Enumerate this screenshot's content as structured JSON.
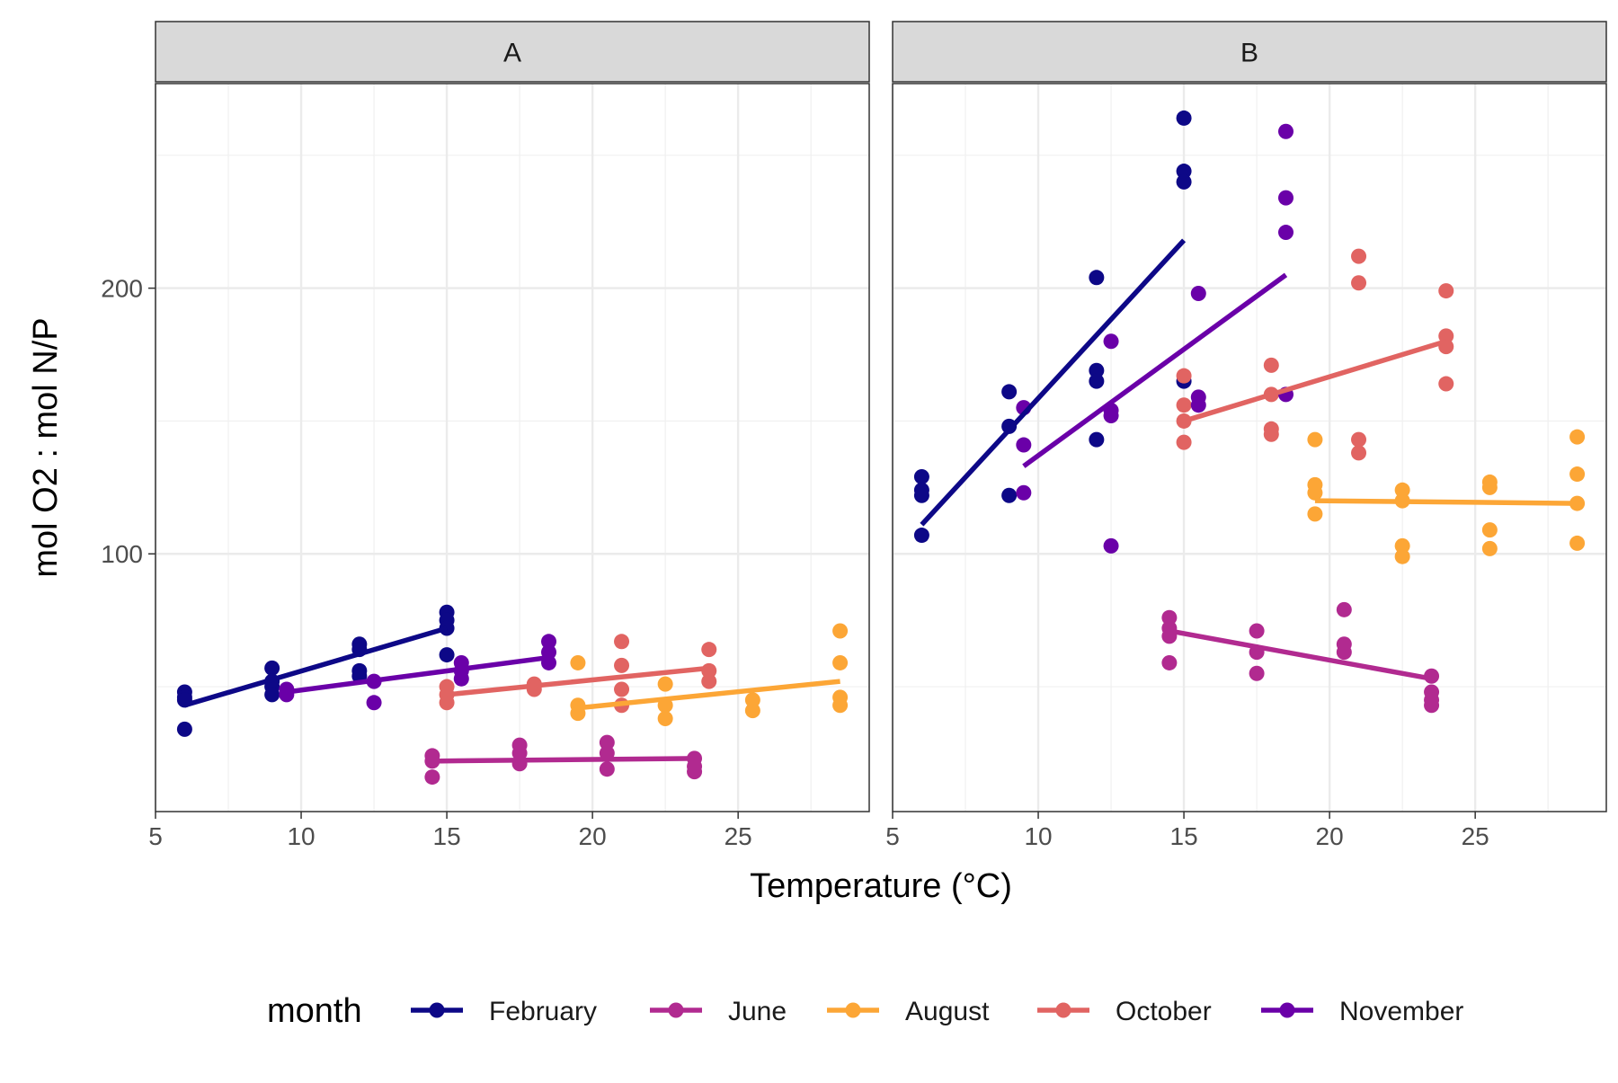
{
  "chart_data": {
    "type": "scatter",
    "xlabel": "Temperature (°C)",
    "ylabel": "mol O2 : mol N/P",
    "xlim": [
      5,
      29.5
    ],
    "ylim": [
      3,
      277
    ],
    "x_ticks": [
      5,
      10,
      15,
      20,
      25
    ],
    "y_ticks": [
      100,
      200
    ],
    "grid": true,
    "legend": {
      "title": "month",
      "position": "bottom",
      "items": [
        {
          "name": "February",
          "color": "#0d0887"
        },
        {
          "name": "June",
          "color": "#b12a90"
        },
        {
          "name": "August",
          "color": "#fca636"
        },
        {
          "name": "October",
          "color": "#e16462"
        },
        {
          "name": "November",
          "color": "#6a00a8"
        }
      ]
    },
    "panels": [
      {
        "label": "A",
        "series": [
          {
            "name": "February",
            "color": "#0d0887",
            "points": [
              [
                6,
                48
              ],
              [
                6,
                46
              ],
              [
                6,
                45
              ],
              [
                6,
                34
              ],
              [
                9,
                57
              ],
              [
                9,
                52
              ],
              [
                9,
                50
              ],
              [
                9,
                47
              ],
              [
                12,
                66
              ],
              [
                12,
                64
              ],
              [
                12,
                56
              ],
              [
                12,
                54
              ],
              [
                15,
                78
              ],
              [
                15,
                75
              ],
              [
                15,
                72
              ],
              [
                15,
                62
              ]
            ],
            "fit": [
              [
                6,
                43
              ],
              [
                15,
                72
              ]
            ]
          },
          {
            "name": "June",
            "color": "#b12a90",
            "points": [
              [
                14.5,
                24
              ],
              [
                14.5,
                22
              ],
              [
                14.5,
                16
              ],
              [
                17.5,
                28
              ],
              [
                17.5,
                25
              ],
              [
                17.5,
                21
              ],
              [
                20.5,
                29
              ],
              [
                20.5,
                25
              ],
              [
                20.5,
                19
              ],
              [
                23.5,
                23
              ],
              [
                23.5,
                20
              ],
              [
                23.5,
                18
              ]
            ],
            "fit": [
              [
                14.5,
                22
              ],
              [
                23.5,
                23
              ]
            ]
          },
          {
            "name": "August",
            "color": "#fca636",
            "points": [
              [
                19.5,
                59
              ],
              [
                19.5,
                43
              ],
              [
                19.5,
                40
              ],
              [
                22.5,
                51
              ],
              [
                22.5,
                43
              ],
              [
                22.5,
                38
              ],
              [
                25.5,
                45
              ],
              [
                25.5,
                41
              ],
              [
                28.5,
                71
              ],
              [
                28.5,
                59
              ],
              [
                28.5,
                46
              ],
              [
                28.5,
                43
              ]
            ],
            "fit": [
              [
                19.5,
                42
              ],
              [
                28.5,
                52
              ]
            ]
          },
          {
            "name": "October",
            "color": "#e16462",
            "points": [
              [
                15,
                50
              ],
              [
                15,
                47
              ],
              [
                15,
                44
              ],
              [
                18,
                51
              ],
              [
                18,
                49
              ],
              [
                21,
                67
              ],
              [
                21,
                58
              ],
              [
                21,
                49
              ],
              [
                21,
                43
              ],
              [
                24,
                64
              ],
              [
                24,
                56
              ],
              [
                24,
                52
              ]
            ],
            "fit": [
              [
                15,
                47
              ],
              [
                24,
                57
              ]
            ]
          },
          {
            "name": "November",
            "color": "#6a00a8",
            "points": [
              [
                9.5,
                49
              ],
              [
                9.5,
                47
              ],
              [
                12.5,
                52
              ],
              [
                12.5,
                44
              ],
              [
                15.5,
                59
              ],
              [
                15.5,
                56
              ],
              [
                15.5,
                53
              ],
              [
                18.5,
                67
              ],
              [
                18.5,
                63
              ],
              [
                18.5,
                59
              ]
            ],
            "fit": [
              [
                9.5,
                48
              ],
              [
                18.5,
                61
              ]
            ]
          }
        ]
      },
      {
        "label": "B",
        "series": [
          {
            "name": "February",
            "color": "#0d0887",
            "points": [
              [
                6,
                129
              ],
              [
                6,
                124
              ],
              [
                6,
                122
              ],
              [
                6,
                107
              ],
              [
                9,
                161
              ],
              [
                9,
                148
              ],
              [
                9,
                122
              ],
              [
                12,
                204
              ],
              [
                12,
                169
              ],
              [
                12,
                165
              ],
              [
                12,
                143
              ],
              [
                15,
                264
              ],
              [
                15,
                244
              ],
              [
                15,
                240
              ],
              [
                15,
                165
              ]
            ],
            "fit": [
              [
                6,
                111
              ],
              [
                15,
                218
              ]
            ]
          },
          {
            "name": "June",
            "color": "#b12a90",
            "points": [
              [
                14.5,
                76
              ],
              [
                14.5,
                72
              ],
              [
                14.5,
                69
              ],
              [
                14.5,
                59
              ],
              [
                17.5,
                71
              ],
              [
                17.5,
                63
              ],
              [
                17.5,
                55
              ],
              [
                20.5,
                79
              ],
              [
                20.5,
                66
              ],
              [
                20.5,
                63
              ],
              [
                23.5,
                54
              ],
              [
                23.5,
                48
              ],
              [
                23.5,
                45
              ],
              [
                23.5,
                43
              ]
            ],
            "fit": [
              [
                14.5,
                71
              ],
              [
                23.5,
                53
              ]
            ]
          },
          {
            "name": "August",
            "color": "#fca636",
            "points": [
              [
                19.5,
                143
              ],
              [
                19.5,
                126
              ],
              [
                19.5,
                123
              ],
              [
                19.5,
                115
              ],
              [
                22.5,
                124
              ],
              [
                22.5,
                120
              ],
              [
                22.5,
                103
              ],
              [
                22.5,
                99
              ],
              [
                25.5,
                127
              ],
              [
                25.5,
                125
              ],
              [
                25.5,
                109
              ],
              [
                25.5,
                102
              ],
              [
                28.5,
                144
              ],
              [
                28.5,
                130
              ],
              [
                28.5,
                119
              ],
              [
                28.5,
                104
              ]
            ],
            "fit": [
              [
                19.5,
                120
              ],
              [
                28.5,
                119
              ]
            ]
          },
          {
            "name": "October",
            "color": "#e16462",
            "points": [
              [
                15,
                167
              ],
              [
                15,
                156
              ],
              [
                15,
                150
              ],
              [
                15,
                142
              ],
              [
                18,
                171
              ],
              [
                18,
                160
              ],
              [
                18,
                147
              ],
              [
                18,
                145
              ],
              [
                21,
                212
              ],
              [
                21,
                202
              ],
              [
                21,
                143
              ],
              [
                21,
                138
              ],
              [
                24,
                199
              ],
              [
                24,
                182
              ],
              [
                24,
                178
              ],
              [
                24,
                164
              ]
            ],
            "fit": [
              [
                15,
                150
              ],
              [
                24,
                180
              ]
            ]
          },
          {
            "name": "November",
            "color": "#6a00a8",
            "points": [
              [
                9.5,
                155
              ],
              [
                9.5,
                141
              ],
              [
                9.5,
                123
              ],
              [
                12.5,
                180
              ],
              [
                12.5,
                154
              ],
              [
                12.5,
                152
              ],
              [
                12.5,
                103
              ],
              [
                15.5,
                198
              ],
              [
                15.5,
                159
              ],
              [
                15.5,
                156
              ],
              [
                18.5,
                259
              ],
              [
                18.5,
                234
              ],
              [
                18.5,
                221
              ],
              [
                18.5,
                160
              ]
            ],
            "fit": [
              [
                9.5,
                133
              ],
              [
                18.5,
                205
              ]
            ]
          }
        ]
      }
    ]
  }
}
